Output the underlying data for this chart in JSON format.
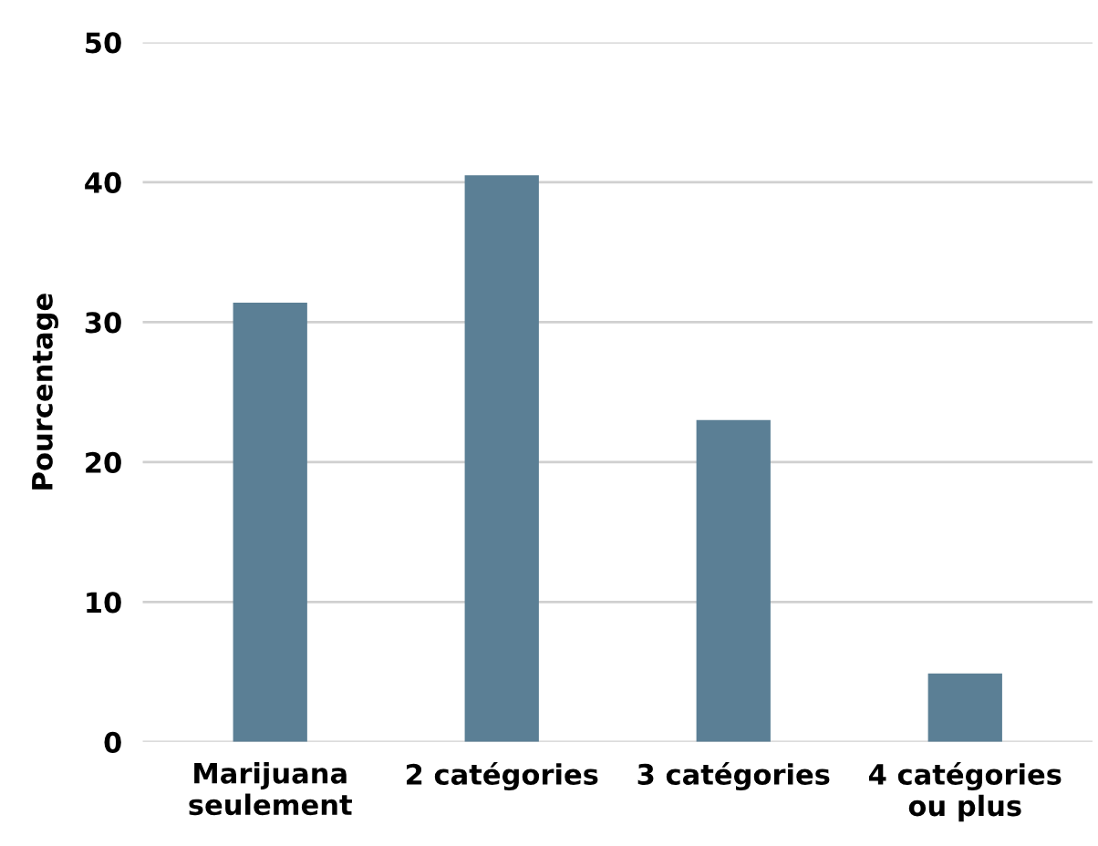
{
  "chart_data": {
    "type": "bar",
    "ylabel": "Pourcentage",
    "categories": [
      "Marijuana\nseulement",
      "2 catégories",
      "3 catégories",
      "4 catégories\nou plus"
    ],
    "values": [
      31.4,
      40.5,
      23.0,
      4.9
    ],
    "color": "#5b7f95",
    "ylim": [
      0,
      50
    ],
    "yticks": [
      0,
      10,
      20,
      30,
      40,
      50
    ],
    "grid": "y"
  }
}
